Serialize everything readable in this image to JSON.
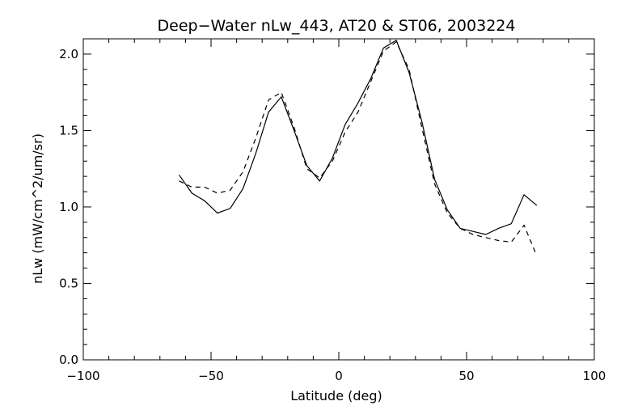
{
  "chart_data": {
    "type": "line",
    "title": "Deep−Water nLw_443, AT20 & ST06, 2003224",
    "xlabel": "Latitude (deg)",
    "ylabel": "nLw (mW/cm^2/um/sr)",
    "xlim": [
      -100,
      100
    ],
    "ylim": [
      0.0,
      2.1
    ],
    "xticks": [
      -100,
      -50,
      0,
      50,
      100
    ],
    "xtick_labels": [
      "−100",
      "−50",
      "0",
      "50",
      "100"
    ],
    "yticks": [
      0.0,
      0.5,
      1.0,
      1.5,
      2.0
    ],
    "ytick_labels": [
      "0.0",
      "0.5",
      "1.0",
      "1.5",
      "2.0"
    ],
    "grid": false,
    "series": [
      {
        "style": "solid",
        "x": [
          -62.5,
          -57.5,
          -52.5,
          -47.5,
          -42.5,
          -37.5,
          -32.5,
          -27.5,
          -22.5,
          -17.5,
          -12.5,
          -7.5,
          -2.5,
          2.5,
          7.5,
          12.5,
          17.5,
          22.5,
          27.5,
          32.5,
          37.5,
          42.5,
          47.5,
          52.5,
          57.5,
          62.5,
          67.5,
          72.5,
          77.5
        ],
        "y": [
          1.21,
          1.09,
          1.04,
          0.96,
          0.99,
          1.12,
          1.35,
          1.62,
          1.72,
          1.5,
          1.27,
          1.17,
          1.32,
          1.54,
          1.68,
          1.84,
          2.04,
          2.09,
          1.88,
          1.56,
          1.18,
          0.98,
          0.86,
          0.84,
          0.82,
          0.86,
          0.89,
          1.08,
          1.01
        ]
      },
      {
        "style": "dashed",
        "x": [
          -62.5,
          -57.5,
          -52.5,
          -47.5,
          -42.5,
          -37.5,
          -32.5,
          -27.5,
          -22.5,
          -17.5,
          -12.5,
          -7.5,
          -2.5,
          2.5,
          7.5,
          12.5,
          17.5,
          22.5,
          27.5,
          32.5,
          37.5,
          42.5,
          47.5,
          52.5,
          57.5,
          62.5,
          67.5,
          72.5,
          77.5
        ],
        "y": [
          1.17,
          1.13,
          1.13,
          1.09,
          1.11,
          1.23,
          1.45,
          1.7,
          1.75,
          1.52,
          1.25,
          1.19,
          1.3,
          1.49,
          1.62,
          1.82,
          2.02,
          2.08,
          1.9,
          1.52,
          1.15,
          0.96,
          0.86,
          0.82,
          0.8,
          0.78,
          0.77,
          0.88,
          0.68
        ]
      }
    ]
  }
}
